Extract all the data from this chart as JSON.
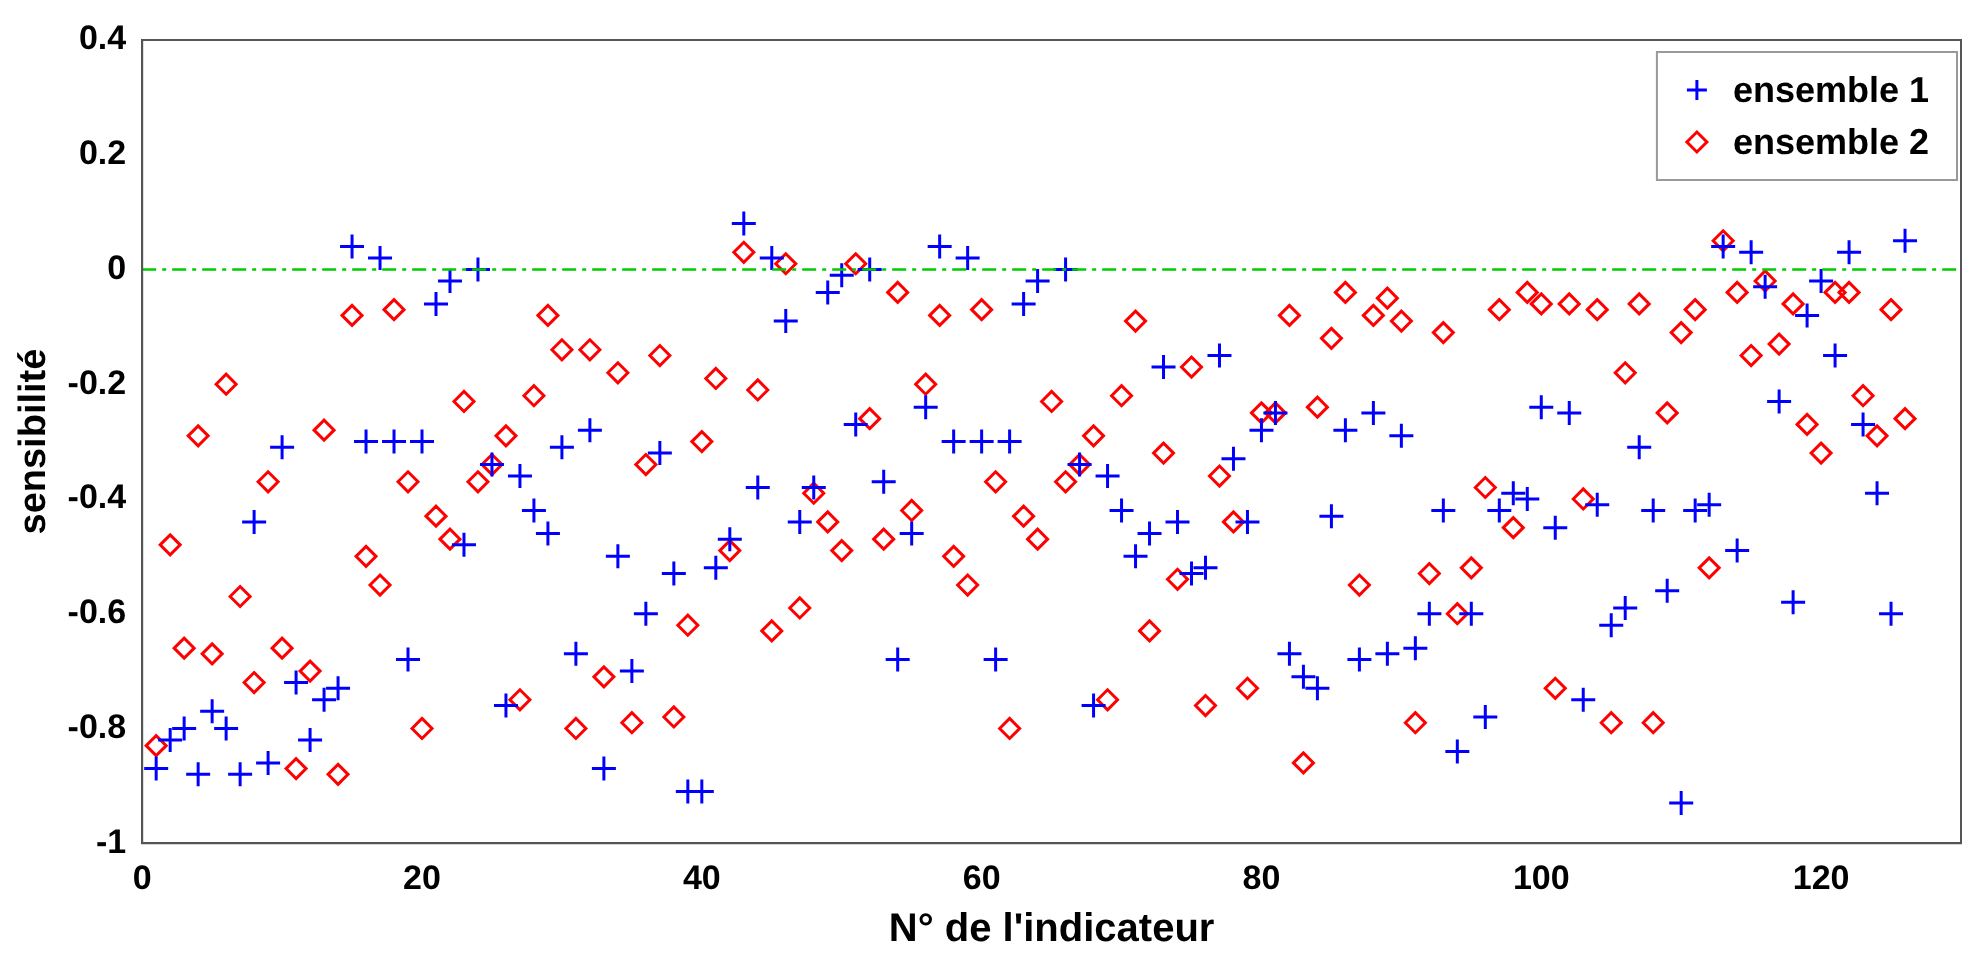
{
  "chart_data": {
    "type": "scatter",
    "xlabel": "N° de l'indicateur",
    "ylabel": "sensibilité",
    "x": [
      1,
      2,
      3,
      4,
      5,
      6,
      7,
      8,
      9,
      10,
      11,
      12,
      13,
      14,
      15,
      16,
      17,
      18,
      19,
      20,
      21,
      22,
      23,
      24,
      25,
      26,
      27,
      28,
      29,
      30,
      31,
      32,
      33,
      34,
      35,
      36,
      37,
      38,
      39,
      40,
      41,
      42,
      43,
      44,
      45,
      46,
      47,
      48,
      49,
      50,
      51,
      52,
      53,
      54,
      55,
      56,
      57,
      58,
      59,
      60,
      61,
      62,
      63,
      64,
      65,
      66,
      67,
      68,
      69,
      70,
      71,
      72,
      73,
      74,
      75,
      76,
      77,
      78,
      79,
      80,
      81,
      82,
      83,
      84,
      85,
      86,
      87,
      88,
      89,
      90,
      91,
      92,
      93,
      94,
      95,
      96,
      97,
      98,
      99,
      100,
      101,
      102,
      103,
      104,
      105,
      106,
      107,
      108,
      109,
      110,
      111,
      112,
      113,
      114,
      115,
      116,
      117,
      118,
      119,
      120,
      121,
      122,
      123,
      124,
      125,
      126
    ],
    "series": [
      {
        "name": "ensemble 1",
        "color": "#0000ff",
        "marker": "cross",
        "values": [
          -0.87,
          -0.82,
          -0.8,
          -0.88,
          -0.77,
          -0.8,
          -0.88,
          -0.44,
          -0.86,
          -0.31,
          -0.72,
          -0.82,
          -0.75,
          -0.73,
          0.04,
          -0.3,
          0.02,
          -0.3,
          -0.68,
          -0.3,
          -0.06,
          -0.02,
          -0.48,
          0.0,
          -0.34,
          -0.76,
          -0.36,
          -0.42,
          -0.46,
          -0.31,
          -0.67,
          -0.28,
          -0.87,
          -0.5,
          -0.7,
          -0.6,
          -0.32,
          -0.53,
          -0.91,
          -0.91,
          -0.52,
          -0.47,
          0.08,
          -0.38,
          0.02,
          -0.09,
          -0.44,
          -0.38,
          -0.04,
          -0.01,
          -0.27,
          0.0,
          -0.37,
          -0.68,
          -0.46,
          -0.24,
          0.04,
          -0.3,
          0.02,
          -0.3,
          -0.68,
          -0.3,
          -0.06,
          -0.02,
          null,
          0.0,
          -0.34,
          -0.76,
          -0.36,
          -0.42,
          -0.5,
          -0.46,
          -0.17,
          -0.44,
          -0.53,
          -0.52,
          -0.15,
          -0.33,
          -0.44,
          -0.28,
          -0.25,
          -0.67,
          -0.71,
          -0.73,
          -0.43,
          -0.28,
          -0.68,
          -0.25,
          -0.67,
          -0.29,
          -0.66,
          -0.6,
          -0.42,
          -0.84,
          -0.6,
          -0.78,
          -0.42,
          -0.39,
          -0.4,
          -0.24,
          -0.45,
          -0.25,
          -0.75,
          -0.41,
          -0.62,
          -0.59,
          -0.31,
          -0.42,
          -0.56,
          -0.93,
          -0.42,
          -0.41,
          0.04,
          -0.49,
          0.03,
          -0.03,
          -0.23,
          -0.58,
          -0.08,
          -0.02,
          -0.15,
          0.03,
          -0.27,
          -0.39,
          -0.6,
          0.05
        ]
      },
      {
        "name": "ensemble 2",
        "color": "#ff0000",
        "marker": "diamond",
        "values": [
          -0.83,
          -0.48,
          -0.66,
          -0.29,
          -0.67,
          -0.2,
          -0.57,
          -0.72,
          -0.37,
          -0.66,
          -0.87,
          -0.7,
          -0.28,
          -0.88,
          -0.08,
          -0.5,
          -0.55,
          -0.07,
          -0.37,
          -0.8,
          -0.43,
          -0.47,
          -0.23,
          -0.37,
          -0.34,
          -0.29,
          -0.75,
          -0.22,
          -0.08,
          -0.14,
          -0.8,
          -0.14,
          -0.71,
          -0.18,
          -0.79,
          -0.34,
          -0.15,
          -0.78,
          -0.62,
          -0.3,
          -0.19,
          -0.49,
          0.03,
          -0.21,
          -0.63,
          0.01,
          -0.59,
          -0.39,
          -0.44,
          -0.49,
          0.01,
          -0.26,
          -0.47,
          -0.04,
          -0.42,
          -0.2,
          -0.08,
          -0.5,
          -0.55,
          -0.07,
          -0.37,
          -0.8,
          -0.43,
          -0.47,
          -0.23,
          -0.37,
          -0.34,
          -0.29,
          -0.75,
          -0.22,
          -0.09,
          -0.63,
          -0.32,
          -0.54,
          -0.17,
          -0.76,
          -0.36,
          -0.44,
          -0.73,
          -0.25,
          -0.25,
          -0.08,
          -0.86,
          -0.24,
          -0.12,
          -0.04,
          -0.55,
          -0.08,
          -0.05,
          -0.09,
          -0.79,
          -0.53,
          -0.11,
          -0.6,
          -0.52,
          -0.38,
          -0.07,
          -0.45,
          -0.04,
          -0.06,
          -0.73,
          -0.06,
          -0.4,
          -0.07,
          -0.79,
          -0.18,
          -0.06,
          -0.79,
          -0.25,
          -0.11,
          -0.07,
          -0.52,
          0.05,
          -0.04,
          -0.15,
          -0.02,
          -0.13,
          -0.06,
          -0.27,
          -0.32,
          -0.04,
          -0.04,
          -0.22,
          -0.29,
          -0.07,
          -0.26
        ]
      }
    ],
    "xlim": [
      0,
      130
    ],
    "xticks": [
      0,
      20,
      40,
      60,
      80,
      100,
      120
    ],
    "ylim": [
      -1,
      0.4
    ],
    "yticks": [
      -1,
      -0.8,
      -0.6,
      -0.4,
      -0.2,
      0,
      0.2,
      0.4
    ],
    "ref_lines": [
      {
        "axis": "y",
        "value": 0,
        "color": "#00cc00",
        "line_style": "dashed"
      }
    ],
    "grid": false,
    "legend": "top right"
  }
}
